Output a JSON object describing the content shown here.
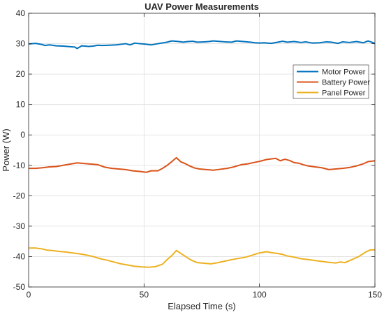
{
  "chart_data": {
    "type": "line",
    "title": "UAV Power Measurements",
    "xlabel": "Elapsed Time (s)",
    "ylabel": "Power (W)",
    "xlim": [
      0,
      150
    ],
    "ylim": [
      -50,
      40
    ],
    "xticks": [
      0,
      50,
      100,
      150
    ],
    "yticks": [
      -50,
      -40,
      -30,
      -20,
      -10,
      0,
      10,
      20,
      30,
      40
    ],
    "grid": true,
    "legend_position": "upper-right",
    "series": [
      {
        "name": "Motor Power",
        "color": "#0072BD",
        "x": [
          0,
          3,
          6,
          7,
          9,
          12,
          15,
          18,
          20,
          21,
          23,
          26,
          28,
          30,
          32,
          35,
          38,
          40,
          42,
          44,
          46,
          48,
          50,
          53,
          56,
          60,
          62,
          65,
          67,
          69,
          71,
          73,
          76,
          78,
          80,
          82,
          85,
          88,
          90,
          93,
          96,
          98,
          100,
          102,
          105,
          108,
          110,
          112,
          115,
          118,
          120,
          123,
          126,
          129,
          131,
          134,
          136,
          139,
          142,
          145,
          147,
          149,
          150
        ],
        "values": [
          29.9,
          30.1,
          29.7,
          29.4,
          29.6,
          29.3,
          29.2,
          29.0,
          28.9,
          28.4,
          29.3,
          29.1,
          29.2,
          29.5,
          29.4,
          29.5,
          29.6,
          29.8,
          30.0,
          29.6,
          30.2,
          30.0,
          29.9,
          29.6,
          30.0,
          30.5,
          30.9,
          30.7,
          30.5,
          30.7,
          30.8,
          30.5,
          30.6,
          30.7,
          30.9,
          30.8,
          30.6,
          30.5,
          30.9,
          30.7,
          30.5,
          30.3,
          30.2,
          30.3,
          30.1,
          30.5,
          30.8,
          30.5,
          30.7,
          30.4,
          30.6,
          30.2,
          30.3,
          30.6,
          30.5,
          30.1,
          30.6,
          30.4,
          30.7,
          30.3,
          30.9,
          30.4,
          30.0
        ]
      },
      {
        "name": "Battery Power",
        "color": "#D95319",
        "x": [
          0,
          3,
          6,
          9,
          12,
          15,
          18,
          21,
          24,
          27,
          30,
          33,
          36,
          39,
          42,
          45,
          48,
          51,
          53,
          56,
          58,
          60,
          62,
          64,
          66,
          68,
          70,
          72,
          74,
          77,
          80,
          83,
          86,
          89,
          92,
          95,
          98,
          100,
          103,
          105,
          107,
          109,
          111,
          113,
          115,
          117,
          119,
          121,
          124,
          127,
          130,
          133,
          136,
          139,
          142,
          145,
          147,
          150
        ],
        "values": [
          -11.0,
          -11.0,
          -10.8,
          -10.5,
          -10.4,
          -10.0,
          -9.6,
          -9.2,
          -9.4,
          -9.6,
          -9.8,
          -10.6,
          -11.0,
          -11.2,
          -11.4,
          -11.8,
          -12.0,
          -12.3,
          -11.8,
          -11.8,
          -11.0,
          -10.0,
          -8.8,
          -7.5,
          -8.9,
          -9.5,
          -10.3,
          -10.9,
          -11.2,
          -11.4,
          -11.6,
          -11.3,
          -11.0,
          -10.5,
          -9.8,
          -9.5,
          -9.0,
          -8.7,
          -8.1,
          -7.9,
          -7.7,
          -8.5,
          -8.0,
          -8.4,
          -9.1,
          -9.3,
          -9.8,
          -10.2,
          -10.5,
          -10.8,
          -11.4,
          -11.2,
          -11.0,
          -10.7,
          -10.2,
          -9.5,
          -8.8,
          -8.5
        ]
      },
      {
        "name": "Panel Power",
        "color": "#EDB120",
        "x": [
          0,
          3,
          6,
          8,
          10,
          13,
          16,
          19,
          22,
          25,
          28,
          31,
          34,
          37,
          40,
          43,
          46,
          49,
          52,
          55,
          58,
          60,
          62,
          64,
          66,
          68,
          70,
          73,
          76,
          79,
          82,
          85,
          88,
          91,
          94,
          97,
          100,
          103,
          106,
          108,
          110,
          112,
          115,
          118,
          121,
          124,
          127,
          130,
          133,
          135,
          137,
          140,
          143,
          146,
          148,
          150
        ],
        "values": [
          -37.2,
          -37.2,
          -37.5,
          -37.9,
          -38.0,
          -38.3,
          -38.5,
          -38.8,
          -39.1,
          -39.5,
          -40.0,
          -40.7,
          -41.2,
          -41.8,
          -42.4,
          -42.8,
          -43.2,
          -43.4,
          -43.5,
          -43.3,
          -42.5,
          -41.0,
          -39.7,
          -38.0,
          -39.0,
          -40.0,
          -41.0,
          -42.0,
          -42.2,
          -42.4,
          -42.0,
          -41.5,
          -41.0,
          -40.6,
          -40.2,
          -39.5,
          -38.8,
          -38.4,
          -38.8,
          -39.0,
          -39.3,
          -39.8,
          -40.2,
          -40.7,
          -41.0,
          -41.3,
          -41.6,
          -41.9,
          -42.1,
          -41.8,
          -42.0,
          -41.0,
          -40.0,
          -38.5,
          -37.8,
          -37.8
        ]
      }
    ]
  }
}
